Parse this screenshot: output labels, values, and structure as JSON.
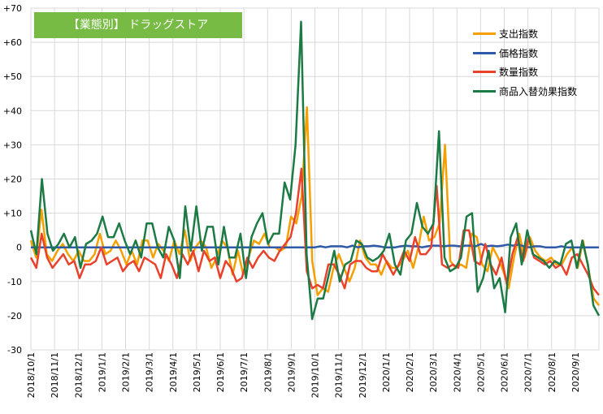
{
  "chart_data": {
    "type": "line",
    "title": "【業態別】 ドラッグストア",
    "ylim": [
      -30,
      70
    ],
    "yticks": [
      "+70",
      "+60",
      "+50",
      "+40",
      "+30",
      "+20",
      "+10",
      "0",
      "-10",
      "-20",
      "-30"
    ],
    "ytick_values": [
      70,
      60,
      50,
      40,
      30,
      20,
      10,
      0,
      -10,
      -20,
      -30
    ],
    "xticks": [
      "2018/10/1",
      "2018/11/1",
      "2018/12/1",
      "2019/1/1",
      "2019/2/1",
      "2019/3/1",
      "2019/4/1",
      "2019/5/1",
      "2019/6/1",
      "2019/7/1",
      "2019/8/1",
      "2019/9/1",
      "2019/10/1",
      "2019/11/1",
      "2019/12/1",
      "2020/1/1",
      "2020/2/1",
      "2020/3/1",
      "2020/4/1",
      "2020/5/1",
      "2020/6/1",
      "2020/7/1",
      "2020/8/1",
      "2020/9/1"
    ],
    "grid": true,
    "legend_position": "top-right",
    "series": [
      {
        "name": "支出指数",
        "color": "#f5a000",
        "values": [
          2,
          -3,
          11,
          -2,
          -4,
          -1,
          1,
          -2,
          -4,
          -1,
          -4,
          -4,
          -2,
          4,
          -2,
          -1,
          2,
          -1,
          -5,
          -1,
          -5,
          2,
          2,
          -3,
          1,
          -1,
          -4,
          2,
          -2,
          5,
          -4,
          0,
          2,
          0,
          -6,
          -3,
          2,
          0,
          -8,
          -1,
          -8,
          -3,
          2,
          1,
          4,
          0,
          0,
          -1,
          0,
          9,
          7,
          15,
          41,
          -4,
          -14,
          -12,
          -13,
          -6,
          -2,
          -6,
          -10,
          -6,
          2,
          -3,
          -5,
          -5,
          -8,
          -4,
          -6,
          -6,
          -4,
          -1,
          -6,
          0,
          9,
          2,
          3,
          7,
          30,
          -4,
          -6,
          -5,
          -6,
          4,
          3,
          -5,
          -7,
          0,
          -3,
          -7,
          -12,
          -3,
          4,
          -3,
          3,
          -1,
          -3,
          -4,
          -3,
          -5,
          -5,
          -2,
          0,
          -6,
          2,
          -6,
          -15,
          -17
        ],
        "show": true
      },
      {
        "name": "価格指数",
        "color": "#2e5aa8",
        "values": [
          0,
          0,
          0,
          0,
          0,
          0,
          0,
          0,
          0,
          0,
          0,
          0,
          0,
          0,
          0,
          0,
          0,
          0,
          0,
          0,
          0,
          0,
          0,
          0,
          0,
          0,
          0,
          0,
          0,
          0,
          0,
          0,
          0,
          0,
          0,
          0,
          0,
          0,
          0,
          0,
          0,
          0,
          0,
          0,
          0,
          0,
          0,
          0,
          0,
          0,
          0,
          0,
          0,
          0,
          0.3,
          0,
          0.3,
          0.3,
          0.3,
          0,
          0.5,
          0,
          0.3,
          0.3,
          0.5,
          0.3,
          0,
          0,
          0,
          0.3,
          0.5,
          0.3,
          0.3,
          0,
          0.3,
          0.5,
          0.5,
          0.3,
          0.5,
          0.5,
          0.3,
          0.5,
          0.5,
          0.3,
          1,
          0.3,
          0.5,
          0.3,
          0.5,
          0.8,
          0.5,
          0.8,
          0.3,
          0,
          0.3,
          0.3,
          0,
          0,
          0,
          0.3,
          0,
          0,
          0,
          0,
          0,
          0,
          0
        ],
        "show": true
      },
      {
        "name": "数量指数",
        "color": "#e8412c",
        "values": [
          -3,
          -6,
          4,
          -3,
          -6,
          -4,
          -2,
          -5,
          -4,
          -9,
          -5,
          -5,
          -4,
          0,
          -5,
          -4,
          -3,
          -7,
          -5,
          -4,
          -7,
          -3,
          -4,
          -5,
          -9,
          -2,
          -5,
          -9,
          -2,
          -5,
          -1,
          -7,
          -1,
          -4,
          -3,
          -9,
          -4,
          -6,
          -10,
          -9,
          -3,
          -6,
          -3,
          -1,
          -3,
          -4,
          -1,
          1,
          3,
          10,
          23,
          -7,
          -12,
          -11,
          -12,
          -5,
          -5,
          -8,
          -12,
          -5,
          -4,
          -4,
          -6,
          -7,
          -7,
          -2,
          -5,
          -8,
          -5,
          -1,
          -4,
          3,
          -2,
          -2,
          0,
          18,
          -5,
          -6,
          -5,
          -6,
          5,
          5,
          -4,
          -5,
          1,
          -5,
          -8,
          -3,
          -11,
          -2,
          3,
          -4,
          3,
          -3,
          -4,
          -5,
          -4,
          -6,
          -5,
          -8,
          -3,
          -2,
          -5,
          -8,
          -12,
          -14
        ],
        "show": true
      },
      {
        "name": "商品入替効果指数",
        "color": "#1c7a45",
        "values": [
          5,
          -2,
          20,
          4,
          -1,
          1,
          4,
          0,
          3,
          -6,
          1,
          2,
          4,
          9,
          3,
          3,
          7,
          2,
          -2,
          2,
          -3,
          7,
          7,
          0,
          -3,
          6,
          2,
          -9,
          12,
          -1,
          12,
          -1,
          6,
          6,
          -5,
          6,
          -3,
          -3,
          4,
          -9,
          3,
          7,
          10,
          1,
          4,
          4,
          19,
          14,
          30,
          66,
          -2,
          -21,
          -15,
          -15,
          -8,
          -1,
          -10,
          -5,
          -4,
          2,
          1,
          -3,
          -4,
          -3,
          -1,
          4,
          -5,
          -8,
          2,
          4,
          13,
          6,
          4,
          7,
          34,
          -3,
          -7,
          -6,
          -3,
          9,
          10,
          -13,
          -9,
          -1,
          -12,
          -9,
          -19,
          3,
          7,
          -5,
          5,
          -2,
          -3,
          -4,
          -6,
          -4,
          -5,
          1,
          2,
          -6,
          2,
          -5,
          -17,
          -20
        ],
        "show": true
      }
    ]
  }
}
